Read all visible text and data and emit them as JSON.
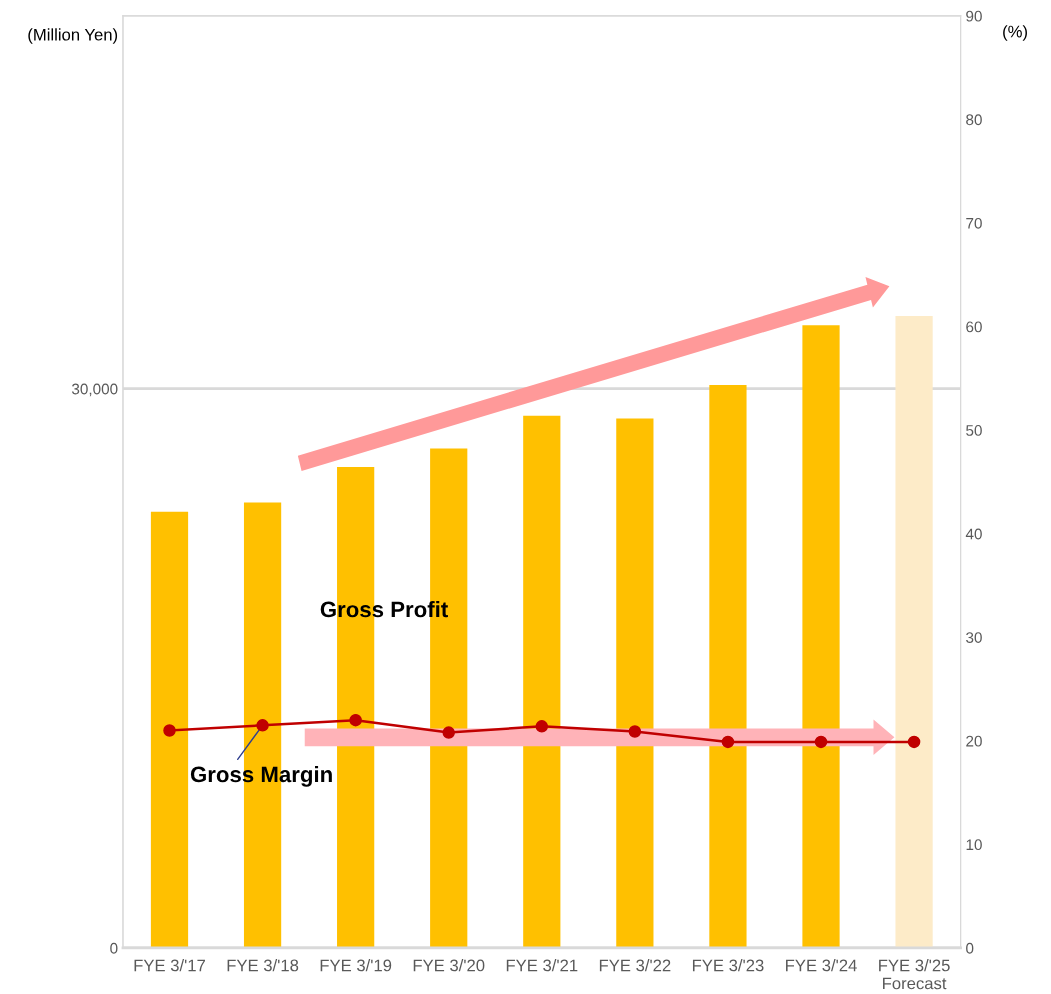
{
  "chart_data": {
    "type": "bar",
    "categories": [
      "FYE 3/'17",
      "FYE 3/'18",
      "FYE 3/'19",
      "FYE 3/'20",
      "FYE 3/'21",
      "FYE 3/'22",
      "FYE 3/'23",
      "FYE 3/'24",
      "FYE 3/'25\nForecast"
    ],
    "series": [
      {
        "name": "Gross Profit",
        "color": "#ffc000",
        "colors": [
          "#ffc000",
          "#ffc000",
          "#ffc000",
          "#ffc000",
          "#ffc000",
          "#ffc000",
          "#ffc000",
          "#ffc000",
          "#fdebc8"
        ],
        "values": [
          23400,
          23900,
          25800,
          26800,
          28550,
          28400,
          30200,
          33400,
          33900
        ]
      },
      {
        "name": "Gross Margin",
        "type": "line",
        "axis": "y2",
        "color": "#c00000",
        "values": [
          21.0,
          21.5,
          22.0,
          20.8,
          21.4,
          20.9,
          19.9,
          19.9,
          19.9
        ]
      }
    ],
    "ylabel": "(Million Yen)",
    "y2label": "(%)",
    "ylim": [
      0,
      50000
    ],
    "yticks": [
      0,
      {
        "value": 30000,
        "label": "30,000"
      }
    ],
    "y2lim": [
      0,
      90
    ],
    "y2ticks": [
      0,
      10,
      20,
      30,
      40,
      50,
      60,
      70,
      80,
      90
    ],
    "grid": "y",
    "marker": "circle",
    "line_style": "solid",
    "legend": false
  }
}
